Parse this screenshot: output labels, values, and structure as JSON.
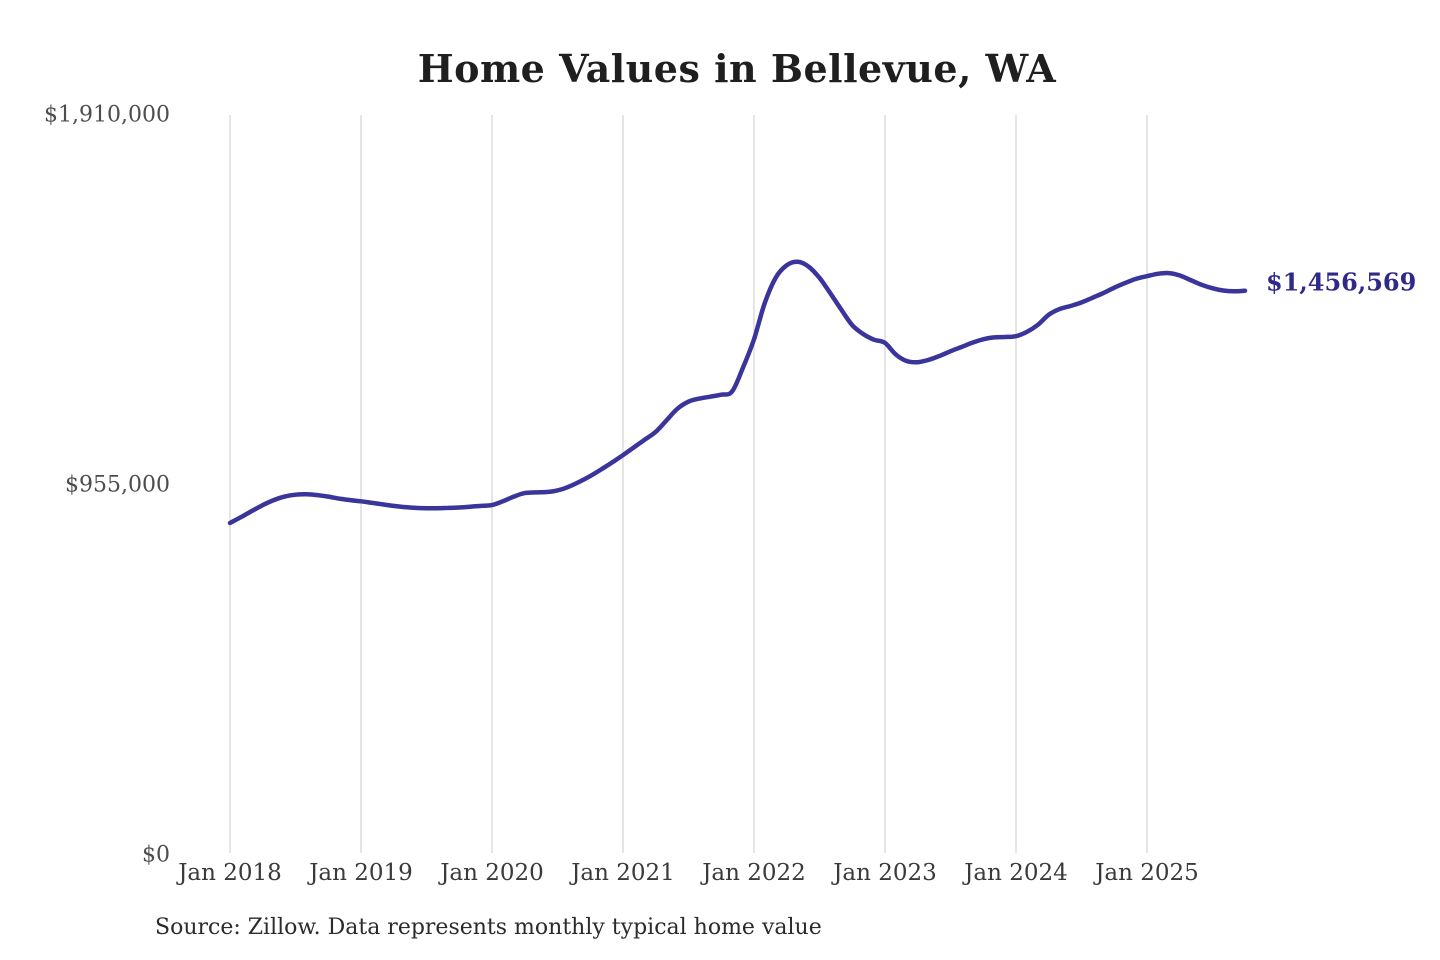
{
  "title": "Home Values in Bellevue, WA",
  "source_note": "Source: Zillow. Data represents monthly typical home value",
  "end_label": "$1,456,569",
  "colors": {
    "line": "#3a359b",
    "end_label": "#2f2a8a",
    "grid": "#cbcbcb",
    "y_tick_text": "#4d4d4d",
    "x_tick_text": "#3a3a3a",
    "title_text": "#1f1f1f"
  },
  "chart_data": {
    "type": "line",
    "title": "Home Values in Bellevue, WA",
    "xlabel": "",
    "ylabel": "",
    "ylim": [
      0,
      1910000
    ],
    "grid": "vertical-only",
    "legend": "none",
    "x_tick_labels": [
      "Jan 2018",
      "Jan 2019",
      "Jan 2020",
      "Jan 2021",
      "Jan 2022",
      "Jan 2023",
      "Jan 2024",
      "Jan 2025"
    ],
    "y_ticks": [
      {
        "label": "$0",
        "value": 0
      },
      {
        "label": "$955,000",
        "value": 955000
      },
      {
        "label": "$1,910,000",
        "value": 1910000
      }
    ],
    "series": [
      {
        "name": "Monthly typical home value",
        "start_month": "2018-01",
        "interval": "monthly",
        "end_month": "2025-10",
        "final_value": 1456569,
        "values": [
          857000,
          872000,
          888000,
          903000,
          916000,
          925000,
          930000,
          931000,
          929000,
          925000,
          920000,
          916000,
          913000,
          909000,
          905000,
          901000,
          898000,
          896000,
          895000,
          895000,
          896000,
          897000,
          899000,
          901000,
          903000,
          913000,
          925000,
          934000,
          936000,
          937000,
          941000,
          950000,
          963000,
          978000,
          995000,
          1013000,
          1032000,
          1052000,
          1072000,
          1092000,
          1122000,
          1152000,
          1170000,
          1178000,
          1183000,
          1188000,
          1196000,
          1258000,
          1330000,
          1425000,
          1490000,
          1522000,
          1531000,
          1519000,
          1490000,
          1450000,
          1408000,
          1368000,
          1345000,
          1330000,
          1322000,
          1292000,
          1275000,
          1272000,
          1278000,
          1288000,
          1300000,
          1311000,
          1322000,
          1331000,
          1336000,
          1337000,
          1339000,
          1350000,
          1368000,
          1394000,
          1409000,
          1417000,
          1426000,
          1438000,
          1450000,
          1464000,
          1476000,
          1487000,
          1494000,
          1500000,
          1502000,
          1496000,
          1484000,
          1472000,
          1463000,
          1457000,
          1455000,
          1456569
        ]
      }
    ]
  }
}
